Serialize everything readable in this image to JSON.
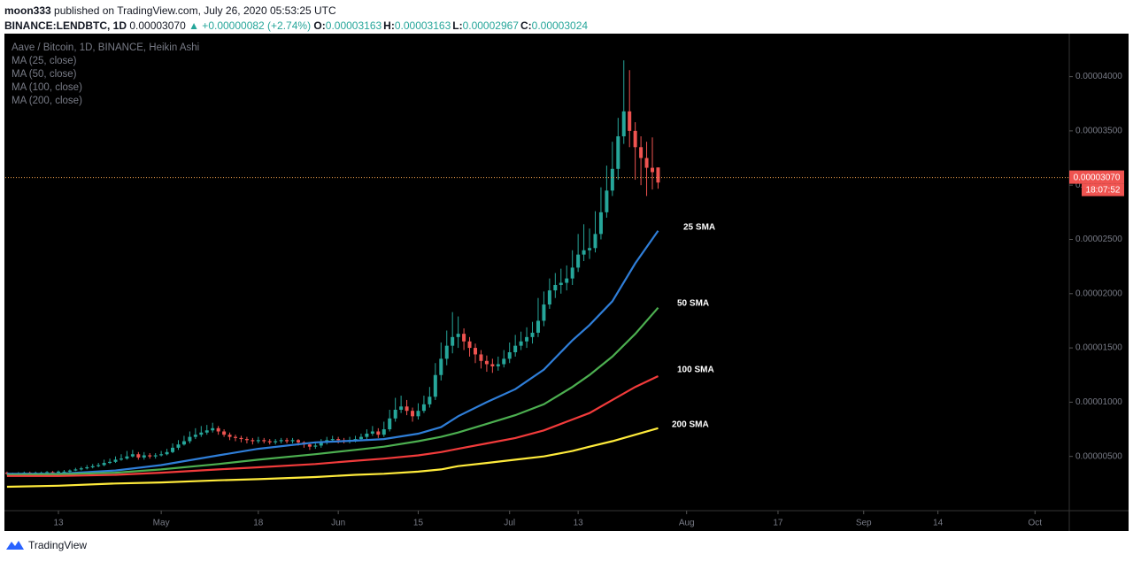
{
  "header": {
    "author": "moon333",
    "published": "published on TradingView.com, July 26, 2020 05:53:25 UTC",
    "symbol": "BINANCE:LENDBTC, 1D",
    "price": "0.00003070",
    "change": "▲ +0.00000082 (+2.74%)",
    "ohlc": [
      {
        "label": "O:",
        "value": "0.00003163"
      },
      {
        "label": "H:",
        "value": "0.00003163"
      },
      {
        "label": "L:",
        "value": "0.00002967"
      },
      {
        "label": "C:",
        "value": "0.00003024"
      }
    ]
  },
  "footer": {
    "brand": "TradingView"
  },
  "chart_data": {
    "type": "candlestick",
    "title": "Aave / Bitcoin, 1D, BINANCE, Heikin Ashi",
    "up_color": "#26a69a",
    "down_color": "#ef5350",
    "xlim": [
      -9.3,
      177
    ],
    "xticks": [
      {
        "value": 0,
        "label": "13"
      },
      {
        "value": 18,
        "label": "May"
      },
      {
        "value": 35,
        "label": "18"
      },
      {
        "value": 49,
        "label": "Jun"
      },
      {
        "value": 63,
        "label": "15"
      },
      {
        "value": 79,
        "label": "Jul"
      },
      {
        "value": 91,
        "label": "13"
      },
      {
        "value": 110,
        "label": "Aug"
      },
      {
        "value": 126,
        "label": "17"
      },
      {
        "value": 141,
        "label": "Sep"
      },
      {
        "value": 154,
        "label": "14"
      },
      {
        "value": 171,
        "label": "Oct"
      }
    ],
    "ylim": [
      0,
      4.38e-05
    ],
    "yticks": [
      {
        "value": 5e-06,
        "label": "0.00000500"
      },
      {
        "value": 1e-05,
        "label": "0.00001000"
      },
      {
        "value": 1.5e-05,
        "label": "0.00001500"
      },
      {
        "value": 2e-05,
        "label": "0.00002000"
      },
      {
        "value": 2.5e-05,
        "label": "0.00002500"
      },
      {
        "value": 3e-05,
        "label": "0.00003000"
      },
      {
        "value": 3.5e-05,
        "label": "0.00003500"
      },
      {
        "value": 4e-05,
        "label": "0.00004000"
      }
    ],
    "last_price": {
      "value": 3.07e-05,
      "label": "0.00003070"
    },
    "countdown": "18:07:52",
    "x": [
      -9,
      -8,
      -7,
      -6,
      -5,
      -4,
      -3,
      -2,
      -1,
      0,
      1,
      2,
      3,
      4,
      5,
      6,
      7,
      8,
      9,
      10,
      11,
      12,
      13,
      14,
      15,
      16,
      17,
      18,
      19,
      20,
      21,
      22,
      23,
      24,
      25,
      26,
      27,
      28,
      29,
      30,
      31,
      32,
      33,
      34,
      35,
      36,
      37,
      38,
      39,
      40,
      41,
      42,
      43,
      44,
      45,
      46,
      47,
      48,
      49,
      50,
      51,
      52,
      53,
      54,
      55,
      56,
      57,
      58,
      59,
      60,
      61,
      62,
      63,
      64,
      65,
      66,
      67,
      68,
      69,
      70,
      71,
      72,
      73,
      74,
      75,
      76,
      77,
      78,
      79,
      80,
      81,
      82,
      83,
      84,
      85,
      86,
      87,
      88,
      89,
      90,
      91,
      92,
      93,
      94,
      95,
      96,
      97,
      98,
      99,
      100,
      101,
      102,
      103,
      104,
      105
    ],
    "open": [
      3.5e-06,
      3.4e-06,
      3.4e-06,
      3.45e-06,
      3.5e-06,
      3.45e-06,
      3.5e-06,
      3.5e-06,
      3.55e-06,
      3.5e-06,
      3.6e-06,
      3.6e-06,
      3.7e-06,
      3.8e-06,
      3.9e-06,
      4e-06,
      4.1e-06,
      4.2e-06,
      4.4e-06,
      4.5e-06,
      4.7e-06,
      4.8e-06,
      5e-06,
      5.2e-06,
      4.9e-06,
      5.1e-06,
      5e-06,
      5.1e-06,
      5.2e-06,
      5.4e-06,
      5.8e-06,
      6.1e-06,
      6.4e-06,
      6.8e-06,
      7e-06,
      7.2e-06,
      7.4e-06,
      7.6e-06,
      7.3e-06,
      7e-06,
      6.8e-06,
      6.7e-06,
      6.6e-06,
      6.5e-06,
      6.4e-06,
      6.5e-06,
      6.4e-06,
      6.3e-06,
      6.4e-06,
      6.5e-06,
      6.4e-06,
      6.5e-06,
      6.3e-06,
      6.1e-06,
      5.9e-06,
      6e-06,
      6.3e-06,
      6.5e-06,
      6.6e-06,
      6.5e-06,
      6.4e-06,
      6.5e-06,
      6.6e-06,
      6.8e-06,
      7.1e-06,
      7.3e-06,
      7e-06,
      7.5e-06,
      8.5e-06,
      9.3e-06,
      9.6e-06,
      9.2e-06,
      8.7e-06,
      9.2e-06,
      9.8e-06,
      1.05e-05,
      1.25e-05,
      1.4e-05,
      1.52e-05,
      1.6e-05,
      1.63e-05,
      1.56e-05,
      1.5e-05,
      1.44e-05,
      1.38e-05,
      1.35e-05,
      1.33e-05,
      1.35e-05,
      1.4e-05,
      1.46e-05,
      1.52e-05,
      1.56e-05,
      1.6e-05,
      1.64e-05,
      1.75e-05,
      1.9e-05,
      2.03e-05,
      2.08e-05,
      2.1e-05,
      2.14e-05,
      2.24e-05,
      2.36e-05,
      2.4e-05,
      2.42e-05,
      2.55e-05,
      2.75e-05,
      2.95e-05,
      3.15e-05,
      3.45e-05,
      3.68e-05,
      3.5e-05,
      3.35e-05,
      3.25e-05,
      3.16e-05,
      3.163e-05
    ],
    "high": [
      3.6e-06,
      3.5e-06,
      3.55e-06,
      3.6e-06,
      3.6e-06,
      3.6e-06,
      3.6e-06,
      3.65e-06,
      3.65e-06,
      3.7e-06,
      3.75e-06,
      3.8e-06,
      3.95e-06,
      4.05e-06,
      4.2e-06,
      4.3e-06,
      4.4e-06,
      4.7e-06,
      4.8e-06,
      5e-06,
      5.2e-06,
      5.5e-06,
      5.6e-06,
      5.4e-06,
      5.4e-06,
      5.3e-06,
      5.3e-06,
      5.5e-06,
      5.7e-06,
      6.2e-06,
      6.5e-06,
      6.9e-06,
      7.3e-06,
      7.6e-06,
      7.8e-06,
      7.9e-06,
      8.1e-06,
      7.8e-06,
      7.5e-06,
      7.2e-06,
      7e-06,
      6.9e-06,
      6.8e-06,
      6.7e-06,
      6.8e-06,
      6.7e-06,
      6.6e-06,
      6.6e-06,
      6.7e-06,
      6.7e-06,
      6.7e-06,
      6.6e-06,
      6.4e-06,
      6.3e-06,
      6.3e-06,
      6.6e-06,
      6.8e-06,
      6.9e-06,
      6.8e-06,
      6.7e-06,
      6.8e-06,
      6.9e-06,
      7.1e-06,
      7.5e-06,
      7.8e-06,
      7.6e-06,
      8.2e-06,
      9.3e-06,
      1.04e-05,
      1.06e-05,
      1.02e-05,
      9.5e-06,
      9.9e-06,
      1.06e-05,
      1.14e-05,
      1.36e-05,
      1.55e-05,
      1.66e-05,
      1.83e-05,
      1.79e-05,
      1.68e-05,
      1.6e-05,
      1.54e-05,
      1.48e-05,
      1.43e-05,
      1.4e-05,
      1.42e-05,
      1.48e-05,
      1.55e-05,
      1.62e-05,
      1.65e-05,
      1.69e-05,
      1.74e-05,
      1.96e-05,
      2.02e-05,
      2.14e-05,
      2.19e-05,
      2.23e-05,
      2.26e-05,
      2.4e-05,
      2.55e-05,
      2.64e-05,
      2.6e-05,
      2.76e-05,
      2.98e-05,
      3.18e-05,
      3.4e-05,
      3.62e-05,
      4.15e-05,
      4.06e-05,
      3.58e-05,
      3.45e-05,
      3.4e-05,
      3.44e-05,
      3.163e-05
    ],
    "low": [
      3.3e-06,
      3.3e-06,
      3.35e-06,
      3.4e-06,
      3.35e-06,
      3.4e-06,
      3.4e-06,
      3.45e-06,
      3.4e-06,
      3.45e-06,
      3.5e-06,
      3.55e-06,
      3.65e-06,
      3.7e-06,
      3.8e-06,
      3.9e-06,
      4e-06,
      4.1e-06,
      4.3e-06,
      4.4e-06,
      4.6e-06,
      4.7e-06,
      4.9e-06,
      4.7e-06,
      4.7e-06,
      4.8e-06,
      4.8e-06,
      5e-06,
      5.1e-06,
      5.3e-06,
      5.6e-06,
      6e-06,
      6.2e-06,
      6.6e-06,
      6.8e-06,
      7e-06,
      7.2e-06,
      7e-06,
      6.8e-06,
      6.5e-06,
      6.4e-06,
      6.3e-06,
      6.2e-06,
      6.1e-06,
      6.2e-06,
      6.2e-06,
      6.1e-06,
      6.1e-06,
      6.2e-06,
      6.2e-06,
      6.2e-06,
      6e-06,
      5.8e-06,
      5.6e-06,
      5.7e-06,
      5.8e-06,
      6.1e-06,
      6.3e-06,
      6.2e-06,
      6.2e-06,
      6.2e-06,
      6.3e-06,
      6.4e-06,
      6.6e-06,
      6.9e-06,
      6.7e-06,
      6.8e-06,
      7.3e-06,
      8.2e-06,
      9e-06,
      8.8e-06,
      8.2e-06,
      8.4e-06,
      9e-06,
      9.5e-06,
      1.02e-05,
      1.2e-05,
      1.34e-05,
      1.45e-05,
      1.5e-05,
      1.48e-05,
      1.42e-05,
      1.36e-05,
      1.31e-05,
      1.28e-05,
      1.27e-05,
      1.29e-05,
      1.32e-05,
      1.36e-05,
      1.42e-05,
      1.48e-05,
      1.5e-05,
      1.54e-05,
      1.6e-05,
      1.7e-05,
      1.86e-05,
      1.96e-05,
      2e-05,
      2.03e-05,
      2.08e-05,
      2.2e-05,
      2.3e-05,
      2.32e-05,
      2.38e-05,
      2.5e-05,
      2.7e-05,
      2.9e-05,
      3.05e-05,
      3.38e-05,
      3.35e-05,
      3.05e-05,
      3e-05,
      2.9e-05,
      2.96e-05,
      2.967e-05
    ],
    "close": [
      3.4e-06,
      3.4e-06,
      3.45e-06,
      3.5e-06,
      3.45e-06,
      3.5e-06,
      3.5e-06,
      3.55e-06,
      3.5e-06,
      3.6e-06,
      3.6e-06,
      3.7e-06,
      3.8e-06,
      3.9e-06,
      4e-06,
      4.1e-06,
      4.2e-06,
      4.4e-06,
      4.5e-06,
      4.7e-06,
      4.8e-06,
      5e-06,
      5.2e-06,
      4.9e-06,
      5.1e-06,
      5e-06,
      5.1e-06,
      5.2e-06,
      5.4e-06,
      5.8e-06,
      6.1e-06,
      6.4e-06,
      6.8e-06,
      7e-06,
      7.2e-06,
      7.4e-06,
      7.6e-06,
      7.3e-06,
      7e-06,
      6.8e-06,
      6.7e-06,
      6.6e-06,
      6.5e-06,
      6.4e-06,
      6.5e-06,
      6.4e-06,
      6.3e-06,
      6.4e-06,
      6.5e-06,
      6.4e-06,
      6.5e-06,
      6.3e-06,
      6.1e-06,
      5.9e-06,
      6e-06,
      6.3e-06,
      6.5e-06,
      6.6e-06,
      6.5e-06,
      6.4e-06,
      6.5e-06,
      6.6e-06,
      6.8e-06,
      7.1e-06,
      7.3e-06,
      7e-06,
      7.5e-06,
      8.5e-06,
      9.3e-06,
      9.6e-06,
      9.2e-06,
      8.7e-06,
      9.2e-06,
      9.8e-06,
      1.05e-05,
      1.25e-05,
      1.4e-05,
      1.52e-05,
      1.6e-05,
      1.63e-05,
      1.56e-05,
      1.5e-05,
      1.44e-05,
      1.38e-05,
      1.35e-05,
      1.33e-05,
      1.35e-05,
      1.4e-05,
      1.46e-05,
      1.52e-05,
      1.56e-05,
      1.6e-05,
      1.64e-05,
      1.75e-05,
      1.9e-05,
      2.03e-05,
      2.08e-05,
      2.1e-05,
      2.14e-05,
      2.24e-05,
      2.36e-05,
      2.4e-05,
      2.42e-05,
      2.55e-05,
      2.75e-05,
      2.95e-05,
      3.15e-05,
      3.45e-05,
      3.68e-05,
      3.5e-05,
      3.35e-05,
      3.25e-05,
      3.16e-05,
      3.12e-05,
      3.024e-05
    ],
    "series": [
      {
        "name": "MA (25, close)",
        "annotation": "25 SMA",
        "color": "#2f7ed8",
        "x": [
          -9,
          0,
          10,
          18,
          28,
          35,
          45,
          52,
          57,
          63,
          67,
          70,
          75,
          80,
          85,
          90,
          93,
          97,
          101,
          105
        ],
        "values": [
          3.4e-06,
          3.4e-06,
          3.7e-06,
          4.2e-06,
          5.1e-06,
          5.7e-06,
          6.3e-06,
          6.45e-06,
          6.6e-06,
          7.1e-06,
          7.7e-06,
          8.7e-06,
          1e-05,
          1.12e-05,
          1.3e-05,
          1.57e-05,
          1.71e-05,
          1.93e-05,
          2.28e-05,
          2.58e-05
        ]
      },
      {
        "name": "MA (50, close)",
        "annotation": "50 SMA",
        "color": "#4caf50",
        "x": [
          -9,
          0,
          10,
          18,
          28,
          35,
          45,
          52,
          57,
          63,
          67,
          70,
          75,
          80,
          85,
          90,
          93,
          97,
          101,
          105
        ],
        "values": [
          3.3e-06,
          3.35e-06,
          3.5e-06,
          3.8e-06,
          4.3e-06,
          4.7e-06,
          5.2e-06,
          5.6e-06,
          5.9e-06,
          6.4e-06,
          6.8e-06,
          7.2e-06,
          8e-06,
          8.8e-06,
          9.8e-06,
          1.14e-05,
          1.25e-05,
          1.42e-05,
          1.63e-05,
          1.87e-05
        ]
      },
      {
        "name": "MA (100, close)",
        "annotation": "100 SMA",
        "color": "#f23b3b",
        "x": [
          -9,
          0,
          10,
          18,
          28,
          35,
          45,
          52,
          57,
          63,
          67,
          70,
          75,
          80,
          85,
          90,
          93,
          97,
          101,
          105
        ],
        "values": [
          3.2e-06,
          3.2e-06,
          3.3e-06,
          3.5e-06,
          3.8e-06,
          4e-06,
          4.3e-06,
          4.6e-06,
          4.8e-06,
          5.1e-06,
          5.4e-06,
          5.7e-06,
          6.2e-06,
          6.7e-06,
          7.4e-06,
          8.4e-06,
          9e-06,
          1.02e-05,
          1.14e-05,
          1.24e-05
        ]
      },
      {
        "name": "MA (200, close)",
        "annotation": "200 SMA",
        "color": "#ffeb3b",
        "x": [
          -9,
          0,
          10,
          18,
          28,
          35,
          45,
          52,
          57,
          63,
          67,
          70,
          75,
          80,
          85,
          90,
          93,
          97,
          101,
          105
        ],
        "values": [
          2.2e-06,
          2.3e-06,
          2.5e-06,
          2.6e-06,
          2.8e-06,
          2.9e-06,
          3.1e-06,
          3.3e-06,
          3.4e-06,
          3.6e-06,
          3.8e-06,
          4.1e-06,
          4.4e-06,
          4.7e-06,
          5e-06,
          5.5e-06,
          5.9e-06,
          6.4e-06,
          7e-06,
          7.6e-06
        ]
      }
    ]
  }
}
